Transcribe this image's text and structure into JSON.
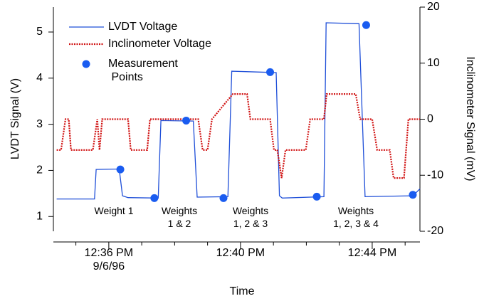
{
  "chart_data": {
    "type": "line",
    "xlabel": "Time",
    "ylabel": "LVDT Signal (V)",
    "y2label": "Inclinometer Signal (mV)",
    "xlim": [
      "12:34:19",
      "12:45:27"
    ],
    "xticks": [
      {
        "value": "12:36",
        "label": "12:36 PM\n9/6/96"
      },
      {
        "value": "12:40",
        "label": "12:40 PM"
      },
      {
        "value": "12:44",
        "label": "12:44 PM"
      }
    ],
    "xminorticks": [
      "12:35",
      "12:37",
      "12:38",
      "12:39",
      "12:41",
      "12:42",
      "12:43",
      "12:45"
    ],
    "ylim": [
      0.68,
      5.54
    ],
    "yticks": [
      1,
      2,
      3,
      4,
      5
    ],
    "y2lim": [
      -20,
      20
    ],
    "y2ticks": [
      -20,
      -10,
      0,
      10,
      20
    ],
    "legend": "upper left",
    "series": [
      {
        "name": "LVDT Voltage",
        "color": "#1f4fd8",
        "style": "solid",
        "x": [
          "12:34:25",
          "12:35:34",
          "12:35:37",
          "12:36:19",
          "12:36:25",
          "12:36:35",
          "12:37:30",
          "12:37:35",
          "12:38:34",
          "12:38:41",
          "12:39:37",
          "12:39:44",
          "12:41:05",
          "12:41:11",
          "12:41:16",
          "12:42:32",
          "12:42:36",
          "12:43:36",
          "12:43:47",
          "12:45:14",
          "12:45:27"
        ],
        "values": [
          1.38,
          1.38,
          2.02,
          2.03,
          1.45,
          1.41,
          1.4,
          3.08,
          3.07,
          1.42,
          1.43,
          4.15,
          4.12,
          1.45,
          1.4,
          1.43,
          5.2,
          5.18,
          1.43,
          1.45,
          1.6
        ]
      },
      {
        "name": "Inclinometer Voltage",
        "color": "#d01010",
        "style": "dotted",
        "axis": "y2",
        "x": [
          "12:34:25",
          "12:34:33",
          "12:34:41",
          "12:34:47",
          "12:34:51",
          "12:35:31",
          "12:35:39",
          "12:35:43",
          "12:35:48",
          "12:36:35",
          "12:36:40",
          "12:37:10",
          "12:37:15",
          "12:38:43",
          "12:38:51",
          "12:39:00",
          "12:39:08",
          "12:39:46",
          "12:40:12",
          "12:40:18",
          "12:40:54",
          "12:41:01",
          "12:41:07",
          "12:41:15",
          "12:41:22",
          "12:41:59",
          "12:42:07",
          "12:42:32",
          "12:42:37",
          "12:43:30",
          "12:43:38",
          "12:44:00",
          "12:44:09",
          "12:44:32",
          "12:44:39",
          "12:44:58",
          "12:45:06",
          "12:45:27"
        ],
        "values": [
          -5.5,
          -5.5,
          0,
          0,
          -5.5,
          -5.5,
          0,
          -5.5,
          0,
          0,
          -5.5,
          -5.5,
          0,
          0,
          -5.5,
          -5.5,
          0,
          4.5,
          4.5,
          0,
          0,
          -5.5,
          -5.5,
          -10.5,
          -5.5,
          -5.5,
          0,
          0,
          4.5,
          4.5,
          0,
          0,
          -5.5,
          -5.5,
          -10.5,
          -10.5,
          0,
          0
        ]
      },
      {
        "name": "Measurement\n Points",
        "color": "#1a5cf0",
        "type": "scatter",
        "x": [
          "12:36:21",
          "12:37:23",
          "12:38:21",
          "12:39:29",
          "12:40:54",
          "12:42:19",
          "12:43:49",
          "12:45:14"
        ],
        "values": [
          2.02,
          1.4,
          3.08,
          1.4,
          4.13,
          1.43,
          5.15,
          1.47
        ]
      }
    ],
    "annotations": [
      "Weight 1",
      "Weights\n1 & 2",
      "Weights\n1, 2 & 3",
      "Weights\n1, 2, 3 & 4"
    ]
  }
}
